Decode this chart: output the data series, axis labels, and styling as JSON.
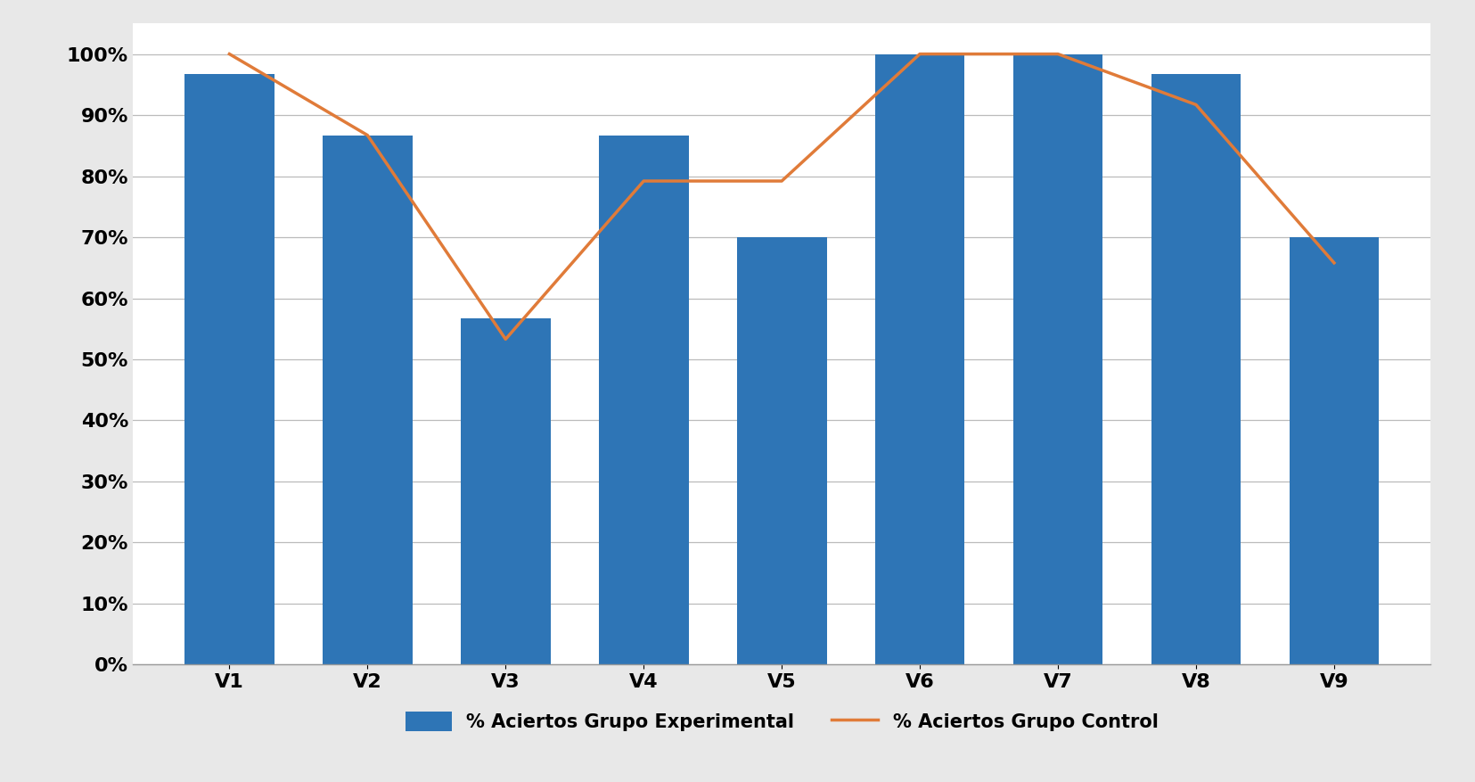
{
  "categories": [
    "V1",
    "V2",
    "V3",
    "V4",
    "V5",
    "V6",
    "V7",
    "V8",
    "V9"
  ],
  "bar_values": [
    0.967,
    0.867,
    0.567,
    0.867,
    0.7,
    1.0,
    1.0,
    0.967,
    0.7
  ],
  "line_values": [
    1.0,
    0.867,
    0.533,
    0.792,
    0.792,
    1.0,
    1.0,
    0.917,
    0.658
  ],
  "bar_color": "#2E75B6",
  "line_color": "#E07B39",
  "bar_label": "% Aciertos Grupo Experimental",
  "line_label": "% Aciertos Grupo Control",
  "ylim": [
    0.0,
    1.05
  ],
  "yticks": [
    0.0,
    0.1,
    0.2,
    0.3,
    0.4,
    0.5,
    0.6,
    0.7,
    0.8,
    0.9,
    1.0
  ],
  "background_color": "#FFFFFF",
  "figure_bg_color": "#E8E8E8",
  "grid_color": "#BBBBBB",
  "bar_width": 0.65
}
